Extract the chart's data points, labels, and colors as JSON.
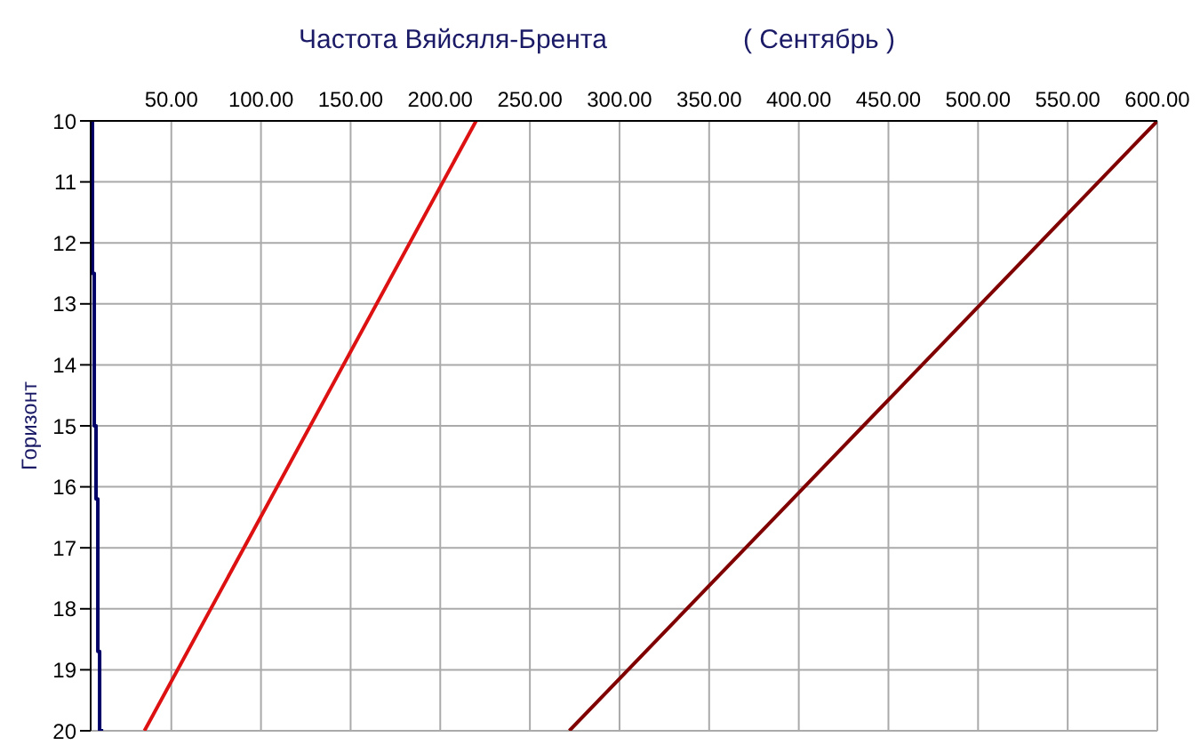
{
  "chart_data": {
    "type": "line",
    "title": "Частота Вяйсяля-Брента",
    "subtitle": "( Сентябрь )",
    "ylabel": "Горизонт",
    "orientation": "horizontal",
    "series": [
      {
        "type": "step",
        "color": "#000066",
        "x": [
          10,
          11.2,
          12.5,
          13.7,
          15,
          16.2,
          17.5,
          18.7,
          20
        ],
        "values": [
          6,
          6,
          7,
          7,
          8,
          9,
          9,
          10,
          12
        ]
      },
      {
        "color": "#dd1111",
        "x": [
          10,
          20
        ],
        "values": [
          220,
          35
        ]
      },
      {
        "color": "#800000",
        "x": [
          10,
          15,
          20
        ],
        "values": [
          600,
          436,
          272
        ]
      }
    ],
    "xlim": [
      5,
      600
    ],
    "xticks": [
      {
        "value": 50,
        "label": "50.00"
      },
      {
        "value": 100,
        "label": "100.00"
      },
      {
        "value": 150,
        "label": "150.00"
      },
      {
        "value": 200,
        "label": "200.00"
      },
      {
        "value": 250,
        "label": "250.00"
      },
      {
        "value": 300,
        "label": "300.00"
      },
      {
        "value": 350,
        "label": "350.00"
      },
      {
        "value": 400,
        "label": "400.00"
      },
      {
        "value": 450,
        "label": "450.00"
      },
      {
        "value": 500,
        "label": "500.00"
      },
      {
        "value": 550,
        "label": "550.00"
      },
      {
        "value": 600,
        "label": "600.00"
      }
    ],
    "ylim": [
      20,
      10
    ],
    "yticks": [
      10,
      11,
      12,
      13,
      14,
      15,
      16,
      17,
      18,
      19,
      20
    ],
    "grid": true
  }
}
